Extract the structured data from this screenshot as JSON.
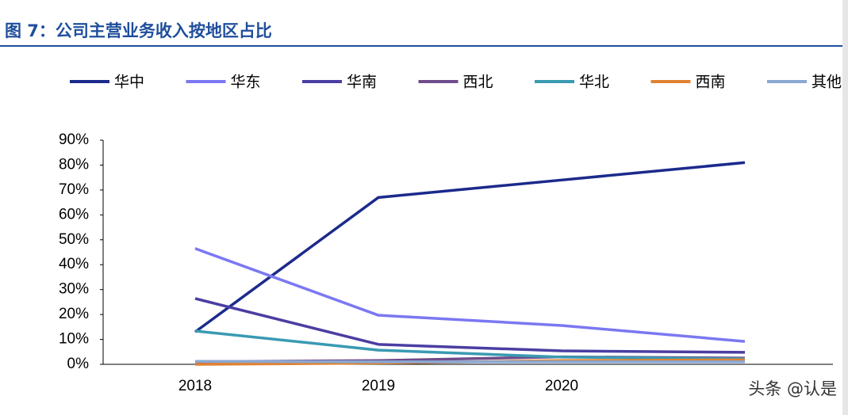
{
  "chart_data": {
    "type": "line",
    "title": "图 7：公司主营业务收入按地区占比",
    "categories": [
      "2018",
      "2019",
      "2020",
      null
    ],
    "series": [
      {
        "name": "华中",
        "color": "#1b2a8c",
        "values": [
          13,
          67,
          74,
          81
        ]
      },
      {
        "name": "华东",
        "color": "#7b78f2",
        "values": [
          46.5,
          19.7,
          15.6,
          9.2
        ]
      },
      {
        "name": "华南",
        "color": "#4a3ea2",
        "values": [
          26.4,
          8,
          5.4,
          4.8
        ]
      },
      {
        "name": "西北",
        "color": "#6e4c8c",
        "values": [
          1,
          1.5,
          3,
          2.5
        ]
      },
      {
        "name": "华北",
        "color": "#3a9ab2",
        "values": [
          13.4,
          5.7,
          2.9,
          2.2
        ]
      },
      {
        "name": "西南",
        "color": "#e08232",
        "values": [
          0,
          0.5,
          1.5,
          1.8
        ]
      },
      {
        "name": "其他",
        "color": "#8aa8d2",
        "values": [
          1.2,
          1,
          1,
          1
        ]
      }
    ],
    "ylim": [
      0,
      90
    ],
    "yticks": [
      {
        "value": 0,
        "label": "0%"
      },
      {
        "value": 10,
        "label": "10%"
      },
      {
        "value": 20,
        "label": "20%"
      },
      {
        "value": 30,
        "label": "30%"
      },
      {
        "value": 40,
        "label": "40%"
      },
      {
        "value": 50,
        "label": "50%"
      },
      {
        "value": 60,
        "label": "60%"
      },
      {
        "value": 70,
        "label": "70%"
      },
      {
        "value": 80,
        "label": "80%"
      },
      {
        "value": 90,
        "label": "90%"
      }
    ],
    "watermark": "头条 @认是"
  }
}
